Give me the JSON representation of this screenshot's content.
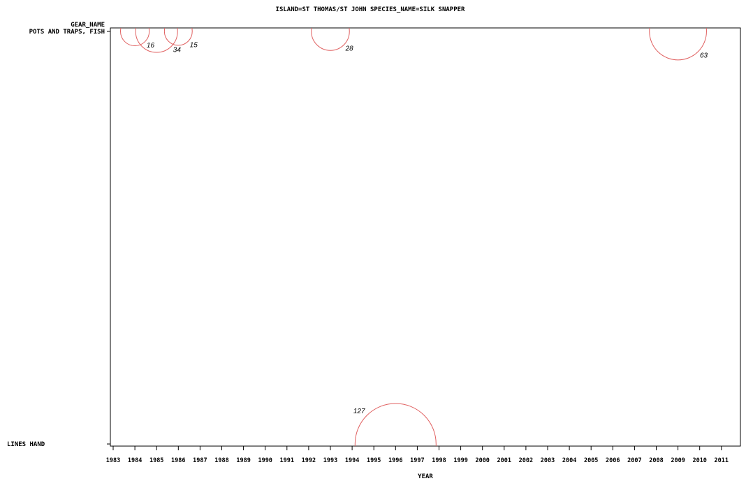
{
  "chart_data": {
    "type": "bubble",
    "title": "ISLAND=ST THOMAS/ST JOHN SPECIES_NAME=SILK SNAPPER",
    "ylabel": "GEAR_NAME",
    "xlabel": "YEAR",
    "x_ticks": [
      "1983",
      "1984",
      "1985",
      "1986",
      "1987",
      "1988",
      "1989",
      "1990",
      "1991",
      "1992",
      "1993",
      "1994",
      "1995",
      "1996",
      "1997",
      "1998",
      "1999",
      "2000",
      "2001",
      "2002",
      "2003",
      "2004",
      "2005",
      "2006",
      "2007",
      "2008",
      "2009",
      "2010",
      "2011"
    ],
    "categories": [
      "POTS AND TRAPS, FISH",
      "LINES HAND"
    ],
    "grid": false,
    "bubble_color": "#e06060",
    "points": [
      {
        "gear": "POTS AND TRAPS, FISH",
        "year": 1984,
        "value": 16,
        "label": "16"
      },
      {
        "gear": "POTS AND TRAPS, FISH",
        "year": 1985,
        "value": 34,
        "label": "34"
      },
      {
        "gear": "POTS AND TRAPS, FISH",
        "year": 1986,
        "value": 15,
        "label": "15"
      },
      {
        "gear": "POTS AND TRAPS, FISH",
        "year": 1993,
        "value": 28,
        "label": "28"
      },
      {
        "gear": "POTS AND TRAPS, FISH",
        "year": 2009,
        "value": 63,
        "label": "63"
      },
      {
        "gear": "LINES HAND",
        "year": 1996,
        "value": 127,
        "label": "127"
      }
    ]
  }
}
